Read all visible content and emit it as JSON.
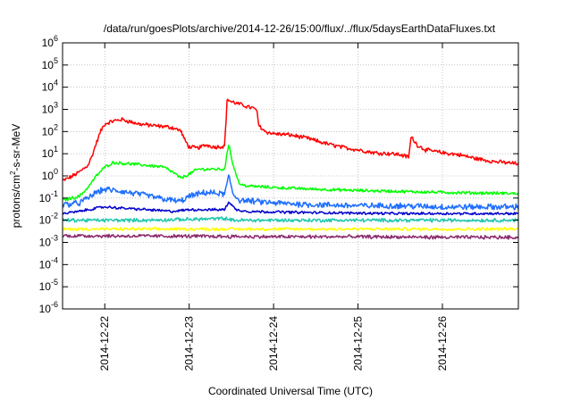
{
  "chart_data": {
    "type": "line",
    "title": "/data/run/goesPlots/archive/2014-12-26/15:00/flux/../flux/5daysEarthDataFluxes.txt",
    "xlabel": "Coordinated Universal Time (UTC)",
    "ylabel": {
      "base": "protons/cm",
      "sup": "2",
      "rest": "-s-sr-MeV"
    },
    "x_unit": "days since 2014-12-21 00:00 UTC",
    "xlim": [
      0.5,
      5.9
    ],
    "ylim": [
      1e-06,
      1000000.0
    ],
    "y_scale": "log",
    "grid": true,
    "x_ticks": [
      {
        "x": 1,
        "label": "2014-12-22"
      },
      {
        "x": 2,
        "label": "2014-12-23"
      },
      {
        "x": 3,
        "label": "2014-12-24"
      },
      {
        "x": 4,
        "label": "2014-12-25"
      },
      {
        "x": 5,
        "label": "2014-12-26"
      }
    ],
    "y_ticks": [
      {
        "exp": -6,
        "label": "10",
        "sup": "-6"
      },
      {
        "exp": -5,
        "label": "10",
        "sup": "-5"
      },
      {
        "exp": -4,
        "label": "10",
        "sup": "-4"
      },
      {
        "exp": -3,
        "label": "10",
        "sup": "-3"
      },
      {
        "exp": -2,
        "label": "10",
        "sup": "-2"
      },
      {
        "exp": -1,
        "label": "10",
        "sup": "-1"
      },
      {
        "exp": 0,
        "label": "10",
        "sup": "0"
      },
      {
        "exp": 1,
        "label": "10",
        "sup": "1"
      },
      {
        "exp": 2,
        "label": "10",
        "sup": "2"
      },
      {
        "exp": 3,
        "label": "10",
        "sup": "3"
      },
      {
        "exp": 4,
        "label": "10",
        "sup": "4"
      },
      {
        "exp": 5,
        "label": "10",
        "sup": "5"
      },
      {
        "exp": 6,
        "label": "10",
        "sup": "6"
      }
    ],
    "series": [
      {
        "color": "#ff0000",
        "noise": 0.08,
        "points": [
          [
            0.5,
            0.6
          ],
          [
            0.6,
            0.9
          ],
          [
            0.7,
            1.5
          ],
          [
            0.8,
            3
          ],
          [
            0.85,
            8
          ],
          [
            0.9,
            30
          ],
          [
            0.95,
            100
          ],
          [
            1.0,
            220
          ],
          [
            1.1,
            300
          ],
          [
            1.2,
            350
          ],
          [
            1.3,
            280
          ],
          [
            1.4,
            220
          ],
          [
            1.5,
            200
          ],
          [
            1.6,
            180
          ],
          [
            1.7,
            170
          ],
          [
            1.8,
            150
          ],
          [
            1.9,
            110
          ],
          [
            1.95,
            40
          ],
          [
            2.0,
            20
          ],
          [
            2.1,
            18
          ],
          [
            2.2,
            25
          ],
          [
            2.3,
            20
          ],
          [
            2.42,
            22
          ],
          [
            2.45,
            3000
          ],
          [
            2.5,
            2200
          ],
          [
            2.6,
            1700
          ],
          [
            2.7,
            1300
          ],
          [
            2.8,
            1000
          ],
          [
            2.82,
            200
          ],
          [
            2.9,
            100
          ],
          [
            3.0,
            80
          ],
          [
            3.2,
            70
          ],
          [
            3.4,
            50
          ],
          [
            3.6,
            30
          ],
          [
            3.8,
            20
          ],
          [
            4.0,
            15
          ],
          [
            4.2,
            11
          ],
          [
            4.4,
            10
          ],
          [
            4.5,
            9
          ],
          [
            4.6,
            7
          ],
          [
            4.63,
            60
          ],
          [
            4.7,
            25
          ],
          [
            4.8,
            15
          ],
          [
            5.0,
            11
          ],
          [
            5.2,
            9
          ],
          [
            5.4,
            6
          ],
          [
            5.6,
            4.5
          ],
          [
            5.9,
            3.5
          ]
        ]
      },
      {
        "color": "#00ff00",
        "noise": 0.06,
        "points": [
          [
            0.5,
            0.08
          ],
          [
            0.7,
            0.12
          ],
          [
            0.8,
            0.3
          ],
          [
            0.9,
            1.0
          ],
          [
            1.0,
            2.5
          ],
          [
            1.1,
            4.0
          ],
          [
            1.3,
            3.5
          ],
          [
            1.5,
            3.0
          ],
          [
            1.7,
            2.5
          ],
          [
            1.8,
            1.5
          ],
          [
            1.9,
            0.8
          ],
          [
            2.0,
            1.2
          ],
          [
            2.1,
            2.0
          ],
          [
            2.3,
            2.0
          ],
          [
            2.42,
            2.0
          ],
          [
            2.47,
            30
          ],
          [
            2.52,
            3
          ],
          [
            2.6,
            0.4
          ],
          [
            2.7,
            0.35
          ],
          [
            3.0,
            0.3
          ],
          [
            3.5,
            0.25
          ],
          [
            4.0,
            0.22
          ],
          [
            4.5,
            0.2
          ],
          [
            5.0,
            0.18
          ],
          [
            5.9,
            0.16
          ]
        ]
      },
      {
        "color": "#1f6fff",
        "noise": 0.12,
        "points": [
          [
            0.5,
            0.05
          ],
          [
            0.7,
            0.06
          ],
          [
            0.8,
            0.1
          ],
          [
            0.9,
            0.18
          ],
          [
            1.0,
            0.25
          ],
          [
            1.2,
            0.2
          ],
          [
            1.5,
            0.13
          ],
          [
            1.7,
            0.09
          ],
          [
            1.9,
            0.07
          ],
          [
            2.0,
            0.12
          ],
          [
            2.2,
            0.18
          ],
          [
            2.42,
            0.15
          ],
          [
            2.47,
            1.0
          ],
          [
            2.52,
            0.15
          ],
          [
            2.6,
            0.08
          ],
          [
            3.0,
            0.06
          ],
          [
            3.5,
            0.05
          ],
          [
            4.0,
            0.045
          ],
          [
            4.5,
            0.045
          ],
          [
            5.0,
            0.04
          ],
          [
            5.9,
            0.04
          ]
        ]
      },
      {
        "color": "#0000cc",
        "noise": 0.05,
        "points": [
          [
            0.5,
            0.02
          ],
          [
            0.7,
            0.025
          ],
          [
            0.9,
            0.035
          ],
          [
            1.0,
            0.04
          ],
          [
            1.2,
            0.035
          ],
          [
            1.5,
            0.03
          ],
          [
            1.8,
            0.025
          ],
          [
            2.0,
            0.03
          ],
          [
            2.3,
            0.03
          ],
          [
            2.42,
            0.03
          ],
          [
            2.47,
            0.07
          ],
          [
            2.55,
            0.03
          ],
          [
            2.7,
            0.025
          ],
          [
            3.5,
            0.022
          ],
          [
            4.5,
            0.02
          ],
          [
            5.9,
            0.02
          ]
        ]
      },
      {
        "color": "#20c8b0",
        "noise": 0.07,
        "points": [
          [
            0.5,
            0.01
          ],
          [
            1.5,
            0.01
          ],
          [
            2.45,
            0.012
          ],
          [
            2.5,
            0.01
          ],
          [
            3.5,
            0.01
          ],
          [
            4.5,
            0.01
          ],
          [
            5.9,
            0.01
          ]
        ]
      },
      {
        "color": "#ffff00",
        "noise": 0.06,
        "points": [
          [
            0.5,
            0.004
          ],
          [
            2.0,
            0.004
          ],
          [
            3.0,
            0.004
          ],
          [
            4.0,
            0.004
          ],
          [
            5.0,
            0.004
          ],
          [
            5.9,
            0.004
          ]
        ]
      },
      {
        "color": "#8b2a6e",
        "noise": 0.07,
        "points": [
          [
            0.5,
            0.002
          ],
          [
            2.0,
            0.0019
          ],
          [
            3.0,
            0.0018
          ],
          [
            4.0,
            0.0018
          ],
          [
            5.0,
            0.0017
          ],
          [
            5.9,
            0.0017
          ]
        ]
      }
    ]
  }
}
